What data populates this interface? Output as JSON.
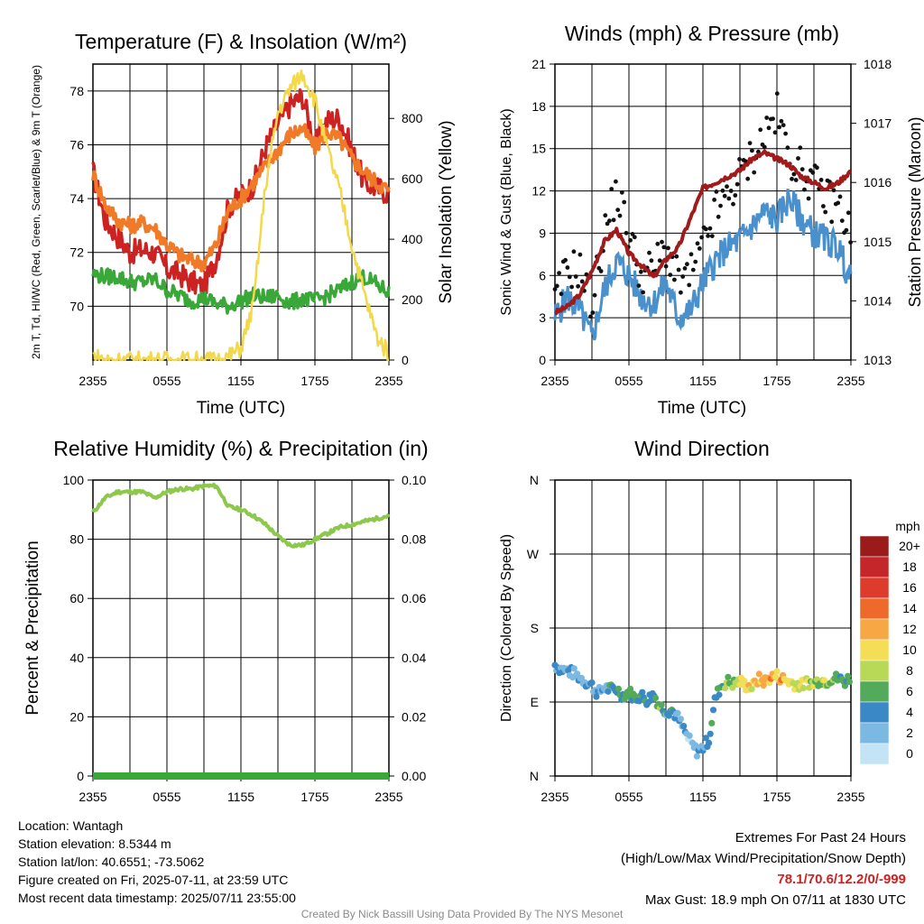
{
  "chart_data": [
    {
      "type": "line",
      "title": "Temperature (F) & Insolation (W/m²)",
      "ylabel": "2m T, Td, HI/WC (Red, Green, Scarlet/Blue) & 9m T (Orange)",
      "y2label": "Solar Insolation (Yellow)",
      "xlabel": "Time (UTC)",
      "xticks": [
        "2355",
        "0555",
        "1155",
        "1755",
        "2355"
      ],
      "ylim": [
        68,
        79
      ],
      "yticks": [
        70,
        72,
        74,
        76,
        78
      ],
      "y2lim": [
        0,
        980
      ],
      "y2ticks": [
        0,
        200,
        400,
        600,
        800
      ],
      "grid": true,
      "hours": [
        0,
        1,
        2,
        3,
        4,
        5,
        6,
        7,
        8,
        9,
        10,
        11,
        12,
        13,
        14,
        15,
        16,
        17,
        18,
        19,
        20,
        21,
        22,
        23,
        24
      ],
      "series": [
        {
          "color": "#cc2222",
          "axis": "left",
          "values": [
            75.0,
            73.2,
            72.6,
            72.0,
            72.1,
            72.0,
            71.4,
            71.2,
            70.9,
            70.7,
            71.8,
            73.7,
            74.1,
            74.5,
            75.9,
            76.8,
            77.5,
            77.8,
            76.0,
            76.9,
            77.0,
            75.8,
            74.6,
            74.4,
            74.2
          ]
        },
        {
          "color": "#f07a28",
          "axis": "left",
          "values": [
            74.9,
            73.8,
            73.2,
            73.0,
            73.1,
            72.9,
            72.3,
            71.9,
            71.7,
            71.6,
            72.3,
            73.6,
            74.0,
            74.6,
            75.2,
            75.8,
            76.4,
            76.6,
            75.9,
            76.5,
            76.2,
            75.5,
            75.0,
            74.6,
            74.3
          ]
        },
        {
          "color": "#3aa838",
          "axis": "left",
          "values": [
            71.2,
            71.1,
            71.1,
            70.9,
            70.9,
            71.0,
            70.6,
            70.4,
            70.2,
            70.3,
            70.1,
            70.0,
            70.2,
            70.4,
            70.3,
            70.4,
            70.1,
            70.3,
            70.2,
            70.4,
            70.6,
            70.9,
            71.1,
            70.8,
            70.5
          ]
        },
        {
          "color": "#f2d84a",
          "axis": "right",
          "values": [
            15,
            0,
            0,
            0,
            0,
            0,
            0,
            0,
            0,
            0,
            0,
            10,
            40,
            180,
            580,
            820,
            900,
            950,
            860,
            700,
            560,
            380,
            220,
            80,
            20
          ]
        }
      ]
    },
    {
      "type": "line",
      "title": "Winds (mph) & Pressure (mb)",
      "ylabel": "Sonic Wind & Gust (Blue, Black)",
      "y2label": "Station Pressure (Maroon)",
      "xlabel": "Time (UTC)",
      "xticks": [
        "2355",
        "0555",
        "1155",
        "1755",
        "2355"
      ],
      "ylim": [
        0,
        21
      ],
      "yticks": [
        0,
        3,
        6,
        9,
        12,
        15,
        18,
        21
      ],
      "y2lim": [
        1013,
        1018
      ],
      "y2ticks": [
        1013,
        1014,
        1015,
        1016,
        1017,
        1018
      ],
      "grid": true,
      "hours": [
        0,
        1,
        2,
        3,
        4,
        5,
        6,
        7,
        8,
        9,
        10,
        11,
        12,
        13,
        14,
        15,
        16,
        17,
        18,
        19,
        20,
        21,
        22,
        23,
        24
      ],
      "series": [
        {
          "color": "#4a90cc",
          "axis": "left",
          "kind": "line",
          "values": [
            3.0,
            4.5,
            3.5,
            1.5,
            5.0,
            7.0,
            6.0,
            4.5,
            4.0,
            5.5,
            3.0,
            3.5,
            5.5,
            7.0,
            8.0,
            8.5,
            9.5,
            10.5,
            10.0,
            11.5,
            10.0,
            9.0,
            8.5,
            8.0,
            5.5
          ]
        },
        {
          "color": "#111111",
          "axis": "left",
          "kind": "scatter",
          "values": [
            4.0,
            6.5,
            6.5,
            4.0,
            9.0,
            12.0,
            9.0,
            6.0,
            6.5,
            8.0,
            5.5,
            6.0,
            8.0,
            10.5,
            11.5,
            13.0,
            14.5,
            16.0,
            17.5,
            14.5,
            13.5,
            12.5,
            11.5,
            11.0,
            9.0
          ]
        },
        {
          "color": "#a01c1c",
          "axis": "right",
          "kind": "line",
          "values": [
            1013.8,
            1013.9,
            1014.1,
            1014.5,
            1015.0,
            1015.2,
            1014.8,
            1014.6,
            1014.4,
            1014.7,
            1014.9,
            1015.4,
            1015.9,
            1016.0,
            1016.1,
            1016.2,
            1016.4,
            1016.5,
            1016.4,
            1016.3,
            1016.1,
            1016.0,
            1015.9,
            1016.0,
            1016.2
          ]
        }
      ]
    },
    {
      "type": "line",
      "title": "Relative Humidity (%) & Precipitation (in)",
      "ylabel": "Percent & Precipitation",
      "xlabel": "",
      "xticks": [
        "2355",
        "0555",
        "1155",
        "1755",
        "2355"
      ],
      "ylim": [
        0,
        100
      ],
      "yticks": [
        0,
        20,
        40,
        60,
        80,
        100
      ],
      "y2lim": [
        0,
        0.1
      ],
      "y2ticks": [
        "0.00",
        "0.02",
        "0.04",
        "0.06",
        "0.08",
        "0.10"
      ],
      "grid": true,
      "hours": [
        0,
        1,
        2,
        3,
        4,
        5,
        6,
        7,
        8,
        9,
        10,
        11,
        12,
        13,
        14,
        15,
        16,
        17,
        18,
        19,
        20,
        21,
        22,
        23,
        24
      ],
      "series": [
        {
          "color": "#8cc84b",
          "axis": "left",
          "values": [
            89,
            94,
            96,
            96,
            96,
            94,
            96,
            97,
            97,
            98,
            98,
            91,
            90,
            88,
            85,
            81,
            78,
            78,
            80,
            82,
            84,
            85,
            86,
            87,
            88
          ]
        },
        {
          "color": "#3aa838",
          "axis": "right",
          "values": [
            0,
            0,
            0,
            0,
            0,
            0,
            0,
            0,
            0,
            0,
            0,
            0,
            0,
            0,
            0,
            0,
            0,
            0,
            0,
            0,
            0,
            0,
            0,
            0,
            0
          ]
        }
      ]
    },
    {
      "type": "scatter",
      "title": "Wind Direction",
      "ylabel": "Direction (Colored By Speed)",
      "xlabel": "",
      "xticks": [
        "2355",
        "0555",
        "1155",
        "1755",
        "2355"
      ],
      "yticks": [
        "N",
        "E",
        "S",
        "W",
        "N"
      ],
      "ylim": [
        0,
        360
      ],
      "grid": true,
      "hours": [
        0,
        0.5,
        1,
        1.5,
        2,
        2.5,
        3,
        3.5,
        4,
        4.5,
        5,
        5.5,
        6,
        6.5,
        7,
        7.5,
        8,
        8.5,
        9,
        9.5,
        10,
        10.5,
        11,
        11.5,
        12,
        12.5,
        13,
        13.5,
        14,
        14.5,
        15,
        15.5,
        16,
        16.5,
        17,
        17.5,
        18,
        18.5,
        19,
        19.5,
        20,
        20.5,
        21,
        21.5,
        22,
        22.5,
        23,
        23.5,
        24
      ],
      "direction": [
        135,
        130,
        128,
        125,
        120,
        115,
        110,
        100,
        108,
        105,
        106,
        98,
        102,
        95,
        98,
        92,
        100,
        85,
        80,
        80,
        70,
        55,
        40,
        30,
        35,
        45,
        95,
        110,
        115,
        112,
        115,
        110,
        108,
        118,
        115,
        120,
        122,
        118,
        115,
        112,
        110,
        115,
        112,
        118,
        115,
        120,
        118,
        115,
        120
      ],
      "speed": [
        3,
        3,
        4,
        3,
        2,
        2,
        4,
        3,
        3,
        4,
        5,
        4,
        6,
        5,
        6,
        5,
        6,
        6,
        4,
        4,
        2,
        2,
        1,
        2,
        3,
        4,
        5,
        6,
        7,
        8,
        9,
        10,
        10,
        11,
        12,
        12,
        11,
        12,
        10,
        10,
        9,
        8,
        8,
        7,
        8,
        7,
        6,
        5,
        6
      ],
      "legend_title": "mph",
      "legend_labels": [
        "20+",
        "18",
        "16",
        "14",
        "12",
        "10",
        "8",
        "6",
        "4",
        "2",
        "0"
      ],
      "legend_colors": [
        "#9b1b1b",
        "#c4262a",
        "#dd3c2c",
        "#ee6a2a",
        "#f7a845",
        "#f4dd57",
        "#b8d857",
        "#52aa5a",
        "#3a88c5",
        "#7bb9e3",
        "#c2e4f6"
      ]
    }
  ],
  "info": {
    "location": "Location: Wantagh",
    "elevation": "Station elevation: 8.5344 m",
    "latlon": "Station lat/lon: 40.6551; -73.5062",
    "created": "Figure created on Fri, 2025-07-11, at 23:59 UTC",
    "recent": "Most recent data timestamp: 2025/07/11 23:55:00"
  },
  "extremes": {
    "line1": "Extremes For Past 24 Hours",
    "line2": "(High/Low/Max Wind/Precipitation/Snow Depth)",
    "values": "78.1/70.6/12.2/0/-999",
    "gust": "Max Gust: 18.9 mph On 07/11 at 1830 UTC",
    "values_color": "#cc2222"
  },
  "credit": "Created By Nick Bassill Using Data Provided By The NYS Mesonet"
}
